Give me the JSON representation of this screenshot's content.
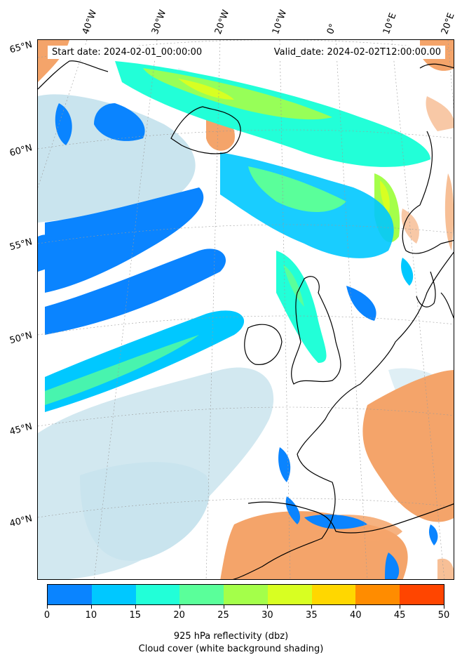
{
  "header": {
    "start_date": "Start date: 2024-02-01_00:00:00",
    "valid_date": "Valid_date: 2024-02-02T12:00:00.00"
  },
  "longitude_labels": [
    "40°W",
    "30°W",
    "20°W",
    "10°W",
    "0°",
    "10°E",
    "20°E"
  ],
  "latitude_labels": [
    "65°N",
    "60°N",
    "55°N",
    "50°N",
    "45°N",
    "40°N"
  ],
  "colorbar": {
    "label": "925 hPa reflectivity (dbz)",
    "sublabel": "Cloud cover (white background shading)",
    "ticks": [
      "0",
      "10",
      "15",
      "20",
      "25",
      "30",
      "35",
      "40",
      "45",
      "50"
    ],
    "colors": [
      "#0a84ff",
      "#00c8ff",
      "#22ffd8",
      "#5aff9a",
      "#a4ff4a",
      "#d8ff22",
      "#ffd700",
      "#ff8c00",
      "#ff4500"
    ]
  },
  "map_colors": {
    "land_warm": "#f4a46a",
    "cloud_shading": "#b7dbe8"
  }
}
